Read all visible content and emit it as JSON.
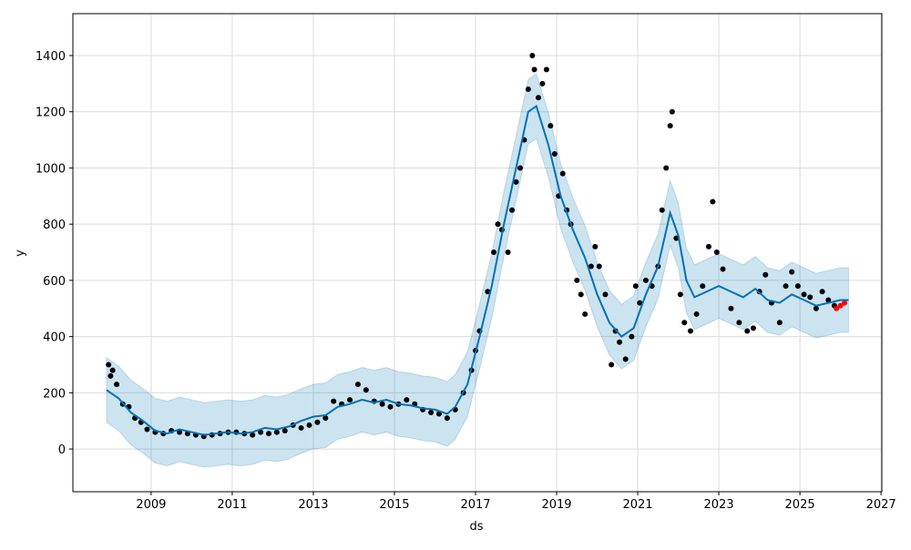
{
  "chart_data": {
    "type": "line",
    "x_label": "ds",
    "y_label": "y",
    "xlim": [
      2007.07,
      2027.02
    ],
    "ylim": [
      -152,
      1549
    ],
    "xticks": [
      2009,
      2011,
      2013,
      2015,
      2017,
      2019,
      2021,
      2023,
      2025,
      2027
    ],
    "yticks": [
      0,
      200,
      400,
      600,
      800,
      1000,
      1200,
      1400
    ],
    "grid": true,
    "forecast": {
      "color": "#0072B2",
      "band_color": "#0072B2",
      "x": [
        2007.9,
        2008.2,
        2008.5,
        2008.8,
        2009.1,
        2009.4,
        2009.7,
        2010.0,
        2010.3,
        2010.6,
        2010.9,
        2011.2,
        2011.5,
        2011.8,
        2012.1,
        2012.4,
        2012.7,
        2013.0,
        2013.3,
        2013.6,
        2013.9,
        2014.2,
        2014.5,
        2014.8,
        2015.1,
        2015.4,
        2015.7,
        2016.0,
        2016.3,
        2016.5,
        2016.8,
        2017.1,
        2017.4,
        2017.7,
        2018.0,
        2018.3,
        2018.5,
        2018.8,
        2019.1,
        2019.4,
        2019.7,
        2020.0,
        2020.3,
        2020.6,
        2020.9,
        2021.2,
        2021.5,
        2021.8,
        2022.0,
        2022.2,
        2022.4,
        2022.7,
        2023.0,
        2023.3,
        2023.6,
        2023.9,
        2024.2,
        2024.5,
        2024.8,
        2025.1,
        2025.4,
        2025.7,
        2026.0,
        2026.2
      ],
      "values": [
        210,
        180,
        130,
        100,
        65,
        55,
        70,
        60,
        50,
        55,
        60,
        55,
        60,
        75,
        70,
        80,
        100,
        115,
        120,
        150,
        160,
        175,
        165,
        175,
        160,
        155,
        145,
        140,
        125,
        150,
        230,
        400,
        580,
        800,
        1000,
        1200,
        1220,
        1080,
        900,
        780,
        680,
        550,
        450,
        400,
        430,
        550,
        650,
        840,
        760,
        600,
        540,
        560,
        580,
        560,
        540,
        570,
        530,
        520,
        550,
        530,
        510,
        520,
        530,
        530
      ],
      "lower": [
        95,
        65,
        15,
        -15,
        -50,
        -60,
        -45,
        -55,
        -65,
        -60,
        -55,
        -60,
        -55,
        -40,
        -45,
        -35,
        -15,
        0,
        5,
        35,
        45,
        60,
        50,
        60,
        45,
        40,
        30,
        25,
        10,
        35,
        115,
        285,
        465,
        685,
        885,
        1085,
        1105,
        965,
        785,
        665,
        565,
        435,
        335,
        285,
        315,
        435,
        535,
        725,
        645,
        485,
        425,
        445,
        465,
        445,
        425,
        455,
        415,
        405,
        435,
        415,
        395,
        405,
        415,
        415
      ],
      "upper": [
        325,
        295,
        245,
        215,
        180,
        170,
        185,
        175,
        165,
        170,
        175,
        170,
        175,
        190,
        185,
        195,
        215,
        230,
        235,
        265,
        275,
        290,
        280,
        290,
        275,
        270,
        260,
        255,
        240,
        265,
        345,
        515,
        695,
        915,
        1115,
        1315,
        1335,
        1195,
        1015,
        895,
        795,
        665,
        565,
        515,
        545,
        665,
        765,
        955,
        875,
        715,
        655,
        675,
        695,
        675,
        655,
        685,
        645,
        635,
        665,
        645,
        625,
        635,
        645,
        645
      ]
    },
    "observed": {
      "color": "#000000",
      "x": [
        2007.95,
        2008.0,
        2008.05,
        2008.15,
        2008.3,
        2008.45,
        2008.6,
        2008.75,
        2008.9,
        2009.1,
        2009.3,
        2009.5,
        2009.7,
        2009.9,
        2010.1,
        2010.3,
        2010.5,
        2010.7,
        2010.9,
        2011.1,
        2011.3,
        2011.5,
        2011.7,
        2011.9,
        2012.1,
        2012.3,
        2012.5,
        2012.7,
        2012.9,
        2013.1,
        2013.3,
        2013.5,
        2013.7,
        2013.9,
        2014.1,
        2014.3,
        2014.5,
        2014.7,
        2014.9,
        2015.1,
        2015.3,
        2015.5,
        2015.7,
        2015.9,
        2016.1,
        2016.3,
        2016.5,
        2016.7,
        2016.9,
        2017.0,
        2017.1,
        2017.3,
        2017.45,
        2017.55,
        2017.65,
        2017.8,
        2017.9,
        2018.0,
        2018.1,
        2018.2,
        2018.3,
        2018.4,
        2018.45,
        2018.55,
        2018.65,
        2018.75,
        2018.85,
        2018.95,
        2019.05,
        2019.15,
        2019.25,
        2019.35,
        2019.5,
        2019.6,
        2019.7,
        2019.85,
        2019.95,
        2020.05,
        2020.2,
        2020.35,
        2020.45,
        2020.55,
        2020.7,
        2020.85,
        2020.95,
        2021.05,
        2021.2,
        2021.35,
        2021.5,
        2021.6,
        2021.7,
        2021.8,
        2021.85,
        2021.95,
        2022.05,
        2022.15,
        2022.3,
        2022.45,
        2022.6,
        2022.75,
        2022.85,
        2022.95,
        2023.1,
        2023.3,
        2023.5,
        2023.7,
        2023.85,
        2024.0,
        2024.15,
        2024.3,
        2024.5,
        2024.65,
        2024.8,
        2024.95,
        2025.1,
        2025.25,
        2025.4,
        2025.55,
        2025.7,
        2025.85
      ],
      "values": [
        300,
        260,
        280,
        230,
        160,
        150,
        110,
        95,
        70,
        60,
        55,
        65,
        60,
        55,
        50,
        45,
        50,
        55,
        60,
        60,
        55,
        50,
        60,
        55,
        60,
        65,
        85,
        75,
        85,
        95,
        110,
        170,
        160,
        175,
        230,
        210,
        170,
        160,
        150,
        160,
        175,
        160,
        140,
        130,
        125,
        110,
        140,
        200,
        280,
        350,
        420,
        560,
        700,
        800,
        780,
        700,
        850,
        950,
        1000,
        1100,
        1280,
        1400,
        1350,
        1250,
        1300,
        1350,
        1150,
        1050,
        900,
        980,
        850,
        800,
        600,
        550,
        480,
        650,
        720,
        650,
        550,
        300,
        420,
        380,
        320,
        400,
        580,
        520,
        600,
        580,
        650,
        850,
        1000,
        1150,
        1200,
        750,
        550,
        450,
        420,
        480,
        580,
        720,
        880,
        700,
        640,
        500,
        450,
        420,
        430,
        560,
        620,
        520,
        450,
        580,
        630,
        580,
        550,
        540,
        500,
        560,
        530,
        510
      ]
    },
    "recent": {
      "color": "#ff0000",
      "x": [
        2025.9,
        2026.0,
        2026.1
      ],
      "values": [
        500,
        510,
        520
      ]
    }
  }
}
